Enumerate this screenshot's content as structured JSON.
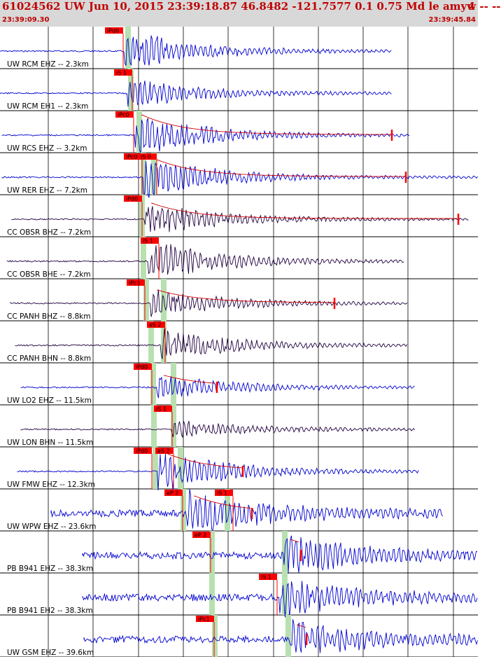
{
  "header": {
    "title": "61024562 UW Jun 10, 2015 23:39:18.87   46.8482 -121.7577  0.1 0.75 Md le amyw -- --",
    "count": "4",
    "time_start": "23:39:09.30",
    "time_end": "23:39:45.84"
  },
  "colors": {
    "header_bg": "#d8d8d8",
    "header_text": "#c00000",
    "trace_blue": "#0000d0",
    "trace_dark": "#200040",
    "pick_red": "#ff0000",
    "window_green": "#b8e0b0",
    "coda_red": "#d00000"
  },
  "channels": [
    {
      "label": "UW RCM EHZ -- 2.3km",
      "picks": [
        "iPd0"
      ]
    },
    {
      "label": "UW RCM EH1 -- 2.3km",
      "picks": [
        "iS 1"
      ]
    },
    {
      "label": "UW RCS EHZ -- 3.2km",
      "picks": [
        "iPc0"
      ]
    },
    {
      "label": "UW RER EHZ -- 7.2km",
      "picks": [
        "iPc0",
        "iS 0"
      ]
    },
    {
      "label": "CC OBSR BHZ -- 7.2km",
      "picks": [
        "iPd0"
      ]
    },
    {
      "label": "CC OBSR BHE -- 7.2km",
      "picks": [
        "iS 1"
      ]
    },
    {
      "label": "CC PANH BHZ -- 8.8km",
      "picks": [
        "iPc1"
      ]
    },
    {
      "label": "CC PANH BHN -- 8.8km",
      "picks": [
        "eS 2"
      ]
    },
    {
      "label": "UW LO2 EHZ -- 11.5km",
      "picks": [
        "iPd0"
      ]
    },
    {
      "label": "UW LON BHN -- 11.5km",
      "picks": [
        "iS 1"
      ]
    },
    {
      "label": "UW FMW EHZ -- 12.3km",
      "picks": [
        "iPd0",
        "eS 2"
      ]
    },
    {
      "label": "UW WPW EHZ -- 23.6km",
      "picks": [
        "eP 2",
        "iS 1"
      ]
    },
    {
      "label": "PB B941 EHZ -- 38.3km",
      "picks": [
        "eP 2"
      ]
    },
    {
      "label": "PB B941 EH2 -- 38.3km",
      "picks": [
        "iS 1"
      ]
    },
    {
      "label": "UW GSM EHZ -- 39.6km",
      "picks": [
        "iPc1"
      ]
    }
  ]
}
